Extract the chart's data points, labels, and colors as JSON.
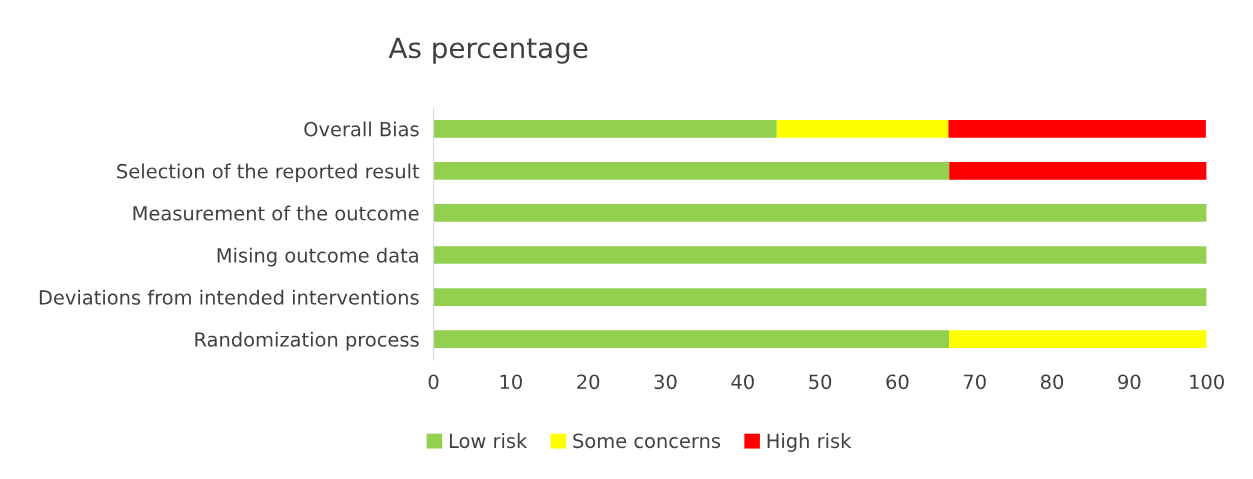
{
  "chart_data": {
    "type": "bar",
    "orientation": "horizontal",
    "stacked": true,
    "title": "As percentage",
    "categories": [
      "Overall Bias",
      "Selection of the reported result",
      "Measurement of the outcome",
      "Mising outcome data",
      "Deviations from intended interventions",
      "Randomization process"
    ],
    "series": [
      {
        "name": "Low risk",
        "color": "#92d050",
        "values": [
          44.4,
          66.7,
          100,
          100,
          100,
          66.7
        ]
      },
      {
        "name": "Some concerns",
        "color": "#ffff00",
        "values": [
          22.2,
          0,
          0,
          0,
          0,
          33.3
        ]
      },
      {
        "name": "High risk",
        "color": "#ff0000",
        "values": [
          33.3,
          33.3,
          0,
          0,
          0,
          0
        ]
      }
    ],
    "xlim": [
      0,
      100
    ],
    "xticks": [
      0,
      10,
      20,
      30,
      40,
      50,
      60,
      70,
      80,
      90,
      100
    ],
    "grid": false,
    "legend": "bottom"
  }
}
